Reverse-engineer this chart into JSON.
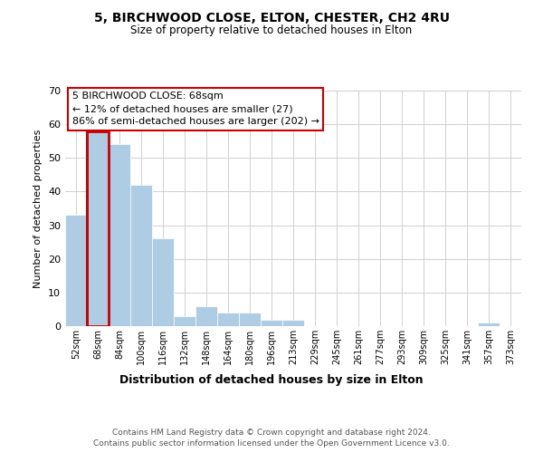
{
  "title": "5, BIRCHWOOD CLOSE, ELTON, CHESTER, CH2 4RU",
  "subtitle": "Size of property relative to detached houses in Elton",
  "xlabel": "Distribution of detached houses by size in Elton",
  "ylabel": "Number of detached properties",
  "bar_color": "#aecce4",
  "bar_edge_color": "#aecce4",
  "outline_color": "#cc0000",
  "bin_labels": [
    "52sqm",
    "68sqm",
    "84sqm",
    "100sqm",
    "116sqm",
    "132sqm",
    "148sqm",
    "164sqm",
    "180sqm",
    "196sqm",
    "213sqm",
    "229sqm",
    "245sqm",
    "261sqm",
    "277sqm",
    "293sqm",
    "309sqm",
    "325sqm",
    "341sqm",
    "357sqm",
    "373sqm"
  ],
  "bar_heights": [
    33,
    58,
    54,
    42,
    26,
    3,
    6,
    4,
    4,
    2,
    2,
    0,
    0,
    0,
    0,
    0,
    0,
    0,
    0,
    1,
    0
  ],
  "highlighted_bar_index": 1,
  "ylim": [
    0,
    70
  ],
  "yticks": [
    0,
    10,
    20,
    30,
    40,
    50,
    60,
    70
  ],
  "annotation_title": "5 BIRCHWOOD CLOSE: 68sqm",
  "annotation_line1": "← 12% of detached houses are smaller (27)",
  "annotation_line2": "86% of semi-detached houses are larger (202) →",
  "footer_line1": "Contains HM Land Registry data © Crown copyright and database right 2024.",
  "footer_line2": "Contains public sector information licensed under the Open Government Licence v3.0.",
  "bg_color": "#ffffff",
  "grid_color": "#d0d0d0"
}
